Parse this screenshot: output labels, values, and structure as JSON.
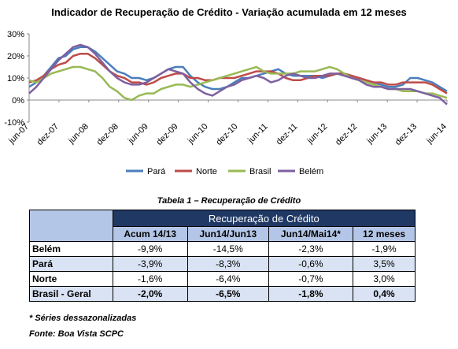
{
  "chart_data": {
    "type": "line",
    "title": "Indicador de Recuperação de Crédito - Variação acumulada em 12 meses",
    "x_tick_labels": [
      "jun-07",
      "dez-07",
      "jun-08",
      "dez-08",
      "jun-09",
      "dez-09",
      "jun-10",
      "dez-10",
      "jun-11",
      "dez-11",
      "jun-12",
      "dez-12",
      "jun-13",
      "dez-13",
      "jun-14"
    ],
    "y_tick_labels": [
      "-10%",
      "0%",
      "10%",
      "20%",
      "30%"
    ],
    "ylim": [
      -10,
      30
    ],
    "legend_position": "bottom",
    "series": [
      {
        "name": "Pará",
        "color": "#4a7ebb",
        "values": [
          6,
          8,
          11,
          15,
          19,
          20,
          23,
          24,
          24,
          22,
          19,
          16,
          13,
          12,
          10,
          10,
          9,
          10,
          12,
          14,
          15,
          15,
          11,
          8,
          6,
          5,
          5,
          6,
          8,
          10,
          10,
          11,
          12,
          13,
          14,
          12,
          11,
          11,
          11,
          11,
          10,
          11,
          12,
          12,
          11,
          10,
          9,
          8,
          7,
          6,
          6,
          7,
          10,
          10,
          9,
          8,
          6,
          4
        ]
      },
      {
        "name": "Norte",
        "color": "#be4b48",
        "values": [
          8,
          9,
          11,
          14,
          16,
          17,
          20,
          21,
          21,
          19,
          16,
          13,
          11,
          10,
          8,
          8,
          7,
          8,
          10,
          11,
          12,
          12,
          10,
          10,
          9,
          9,
          10,
          10,
          10,
          11,
          12,
          13,
          13,
          13,
          12,
          10,
          9,
          9,
          10,
          11,
          11,
          11,
          12,
          12,
          11,
          10,
          9,
          8,
          8,
          7,
          7,
          8,
          8,
          8,
          8,
          7,
          5,
          3
        ]
      },
      {
        "name": "Brasil",
        "color": "#98b954",
        "values": [
          9,
          8,
          10,
          12,
          13,
          14,
          15,
          15,
          14,
          13,
          10,
          6,
          4,
          1,
          0,
          2,
          3,
          3,
          5,
          6,
          7,
          7,
          6,
          7,
          8,
          9,
          10,
          11,
          12,
          13,
          14,
          15,
          13,
          12,
          12,
          12,
          12,
          13,
          13,
          13,
          14,
          15,
          14,
          12,
          10,
          9,
          8,
          7,
          6,
          5,
          5,
          4,
          4,
          4,
          3,
          3,
          2,
          1
        ]
      },
      {
        "name": "Belém",
        "color": "#7d60a0",
        "values": [
          3,
          6,
          10,
          14,
          18,
          21,
          24,
          25,
          24,
          21,
          17,
          13,
          10,
          8,
          7,
          7,
          8,
          10,
          12,
          14,
          13,
          12,
          8,
          5,
          3,
          2,
          4,
          6,
          7,
          9,
          10,
          11,
          10,
          8,
          9,
          11,
          12,
          11,
          10,
          10,
          11,
          12,
          12,
          11,
          10,
          9,
          7,
          6,
          6,
          5,
          5,
          5,
          5,
          4,
          3,
          2,
          1,
          -2
        ]
      }
    ]
  },
  "table": {
    "caption": "Tabela 1 – Recuperação  de Crédito",
    "header_main": "Recuperação de Crédito",
    "columns": [
      "Acum 14/13",
      "Jun14/Jun13",
      "Jun14/Mai14*",
      "12 meses"
    ],
    "rows": [
      {
        "label": "Belém",
        "values": [
          "-9,9%",
          "-14,5%",
          "-2,3%",
          "-1,9%"
        ]
      },
      {
        "label": "Pará",
        "values": [
          "-3,9%",
          "-8,3%",
          "-0,6%",
          "3,5%"
        ]
      },
      {
        "label": "Norte",
        "values": [
          "-1,6%",
          "-6,4%",
          "-0,7%",
          "3,0%"
        ]
      },
      {
        "label": "Brasil - Geral",
        "values": [
          "-2,0%",
          "-6,5%",
          "-1,8%",
          "0,4%"
        ]
      }
    ]
  },
  "footnote": "* Séries dessazonalizadas",
  "source": "Fonte: Boa Vista SCPC"
}
